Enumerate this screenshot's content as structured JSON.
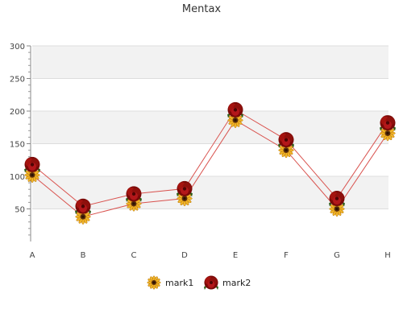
{
  "chart_data": {
    "type": "line",
    "title": "Mentax",
    "categories": [
      "A",
      "B",
      "C",
      "D",
      "E",
      "F",
      "G",
      "H"
    ],
    "ylim": [
      0,
      300
    ],
    "yticks": [
      50,
      100,
      150,
      200,
      250,
      300
    ],
    "grid": true,
    "legend_position": "bottom",
    "series": [
      {
        "name": "mark1",
        "values": [
          102,
          38,
          58,
          66,
          186,
          140,
          50,
          166
        ],
        "color": "#e8a02a",
        "marker": "sunflower-icon",
        "line_color": "#d9534f"
      },
      {
        "name": "mark2",
        "values": [
          118,
          54,
          73,
          81,
          202,
          156,
          66,
          182
        ],
        "color": "#a5130f",
        "marker": "rose-icon",
        "line_color": "#d9534f"
      }
    ]
  }
}
